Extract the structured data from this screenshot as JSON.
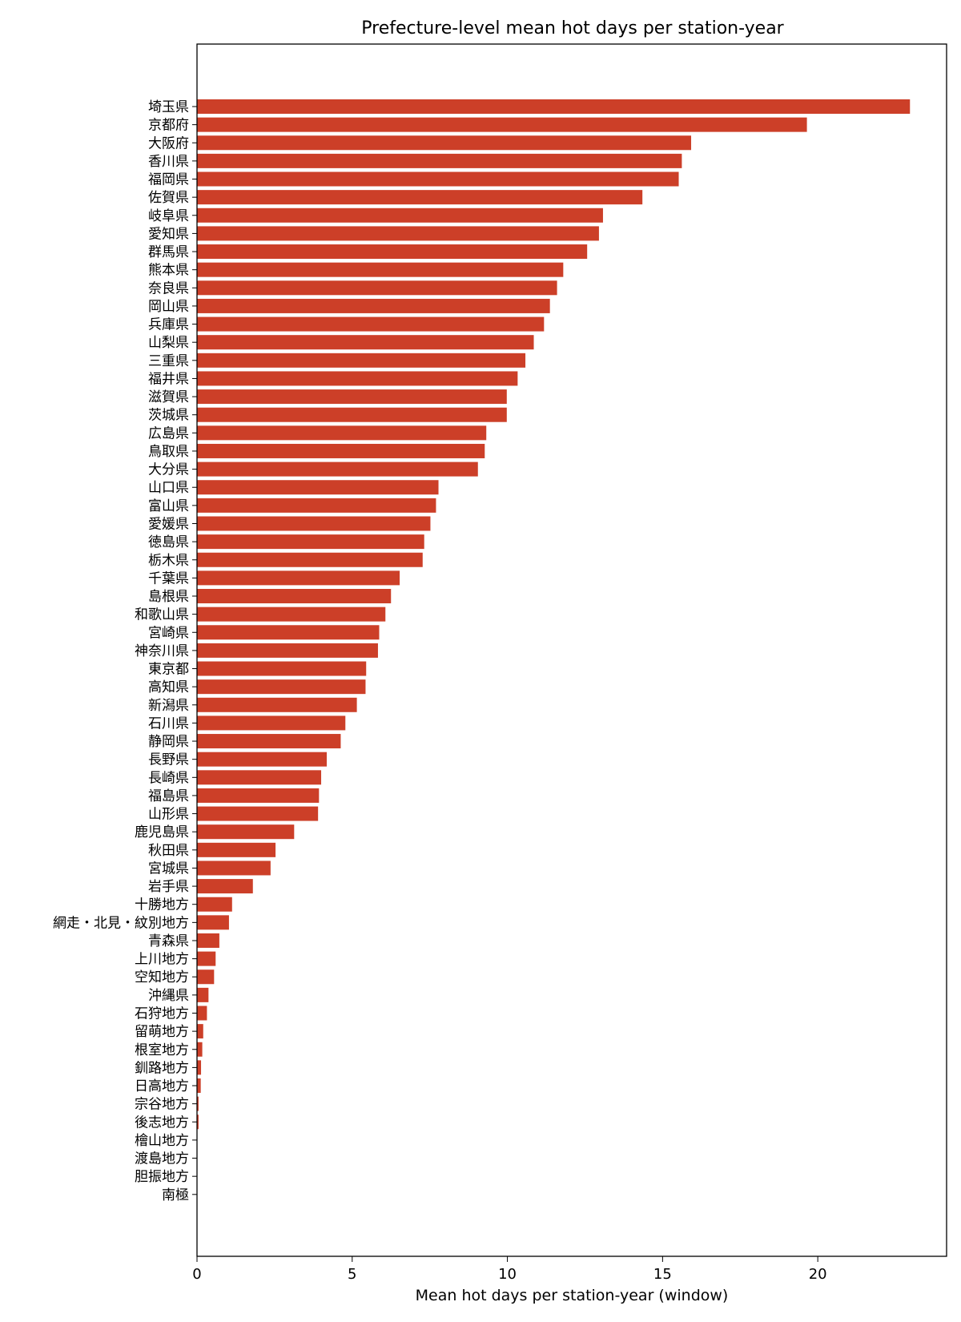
{
  "chart_data": {
    "type": "bar",
    "orientation": "horizontal",
    "title": "Prefecture-level mean hot days per station-year",
    "xlabel": "Mean hot days per station-year (window)",
    "ylabel": "",
    "xlim": [
      0,
      24.15
    ],
    "xticks": [
      0,
      5,
      10,
      15,
      20
    ],
    "xtick_labels": [
      "0",
      "5",
      "10",
      "15",
      "20"
    ],
    "grid": false,
    "bar_color": "#cc3f28",
    "categories": [
      "埼玉県",
      "京都府",
      "大阪府",
      "香川県",
      "福岡県",
      "佐賀県",
      "岐阜県",
      "愛知県",
      "群馬県",
      "熊本県",
      "奈良県",
      "岡山県",
      "兵庫県",
      "山梨県",
      "三重県",
      "福井県",
      "滋賀県",
      "茨城県",
      "広島県",
      "鳥取県",
      "大分県",
      "山口県",
      "富山県",
      "愛媛県",
      "徳島県",
      "栃木県",
      "千葉県",
      "島根県",
      "和歌山県",
      "宮崎県",
      "神奈川県",
      "東京都",
      "高知県",
      "新潟県",
      "石川県",
      "静岡県",
      "長野県",
      "長崎県",
      "福島県",
      "山形県",
      "鹿児島県",
      "秋田県",
      "宮城県",
      "岩手県",
      "十勝地方",
      "網走・北見・紋別地方",
      "青森県",
      "上川地方",
      "空知地方",
      "沖縄県",
      "石狩地方",
      "留萌地方",
      "根室地方",
      "釧路地方",
      "日高地方",
      "宗谷地方",
      "後志地方",
      "檜山地方",
      "渡島地方",
      "胆振地方",
      "南極"
    ],
    "values": [
      22.97,
      19.65,
      15.92,
      15.62,
      15.52,
      14.35,
      13.08,
      12.95,
      12.57,
      11.8,
      11.6,
      11.37,
      11.18,
      10.85,
      10.58,
      10.33,
      9.98,
      9.98,
      9.32,
      9.27,
      9.05,
      7.78,
      7.7,
      7.52,
      7.32,
      7.27,
      6.53,
      6.25,
      6.07,
      5.87,
      5.83,
      5.45,
      5.43,
      5.15,
      4.78,
      4.63,
      4.18,
      4.0,
      3.93,
      3.9,
      3.13,
      2.53,
      2.37,
      1.8,
      1.13,
      1.03,
      0.72,
      0.6,
      0.55,
      0.37,
      0.32,
      0.2,
      0.17,
      0.13,
      0.12,
      0.05,
      0.05,
      0.0,
      0.0,
      0.0,
      0.0
    ]
  }
}
